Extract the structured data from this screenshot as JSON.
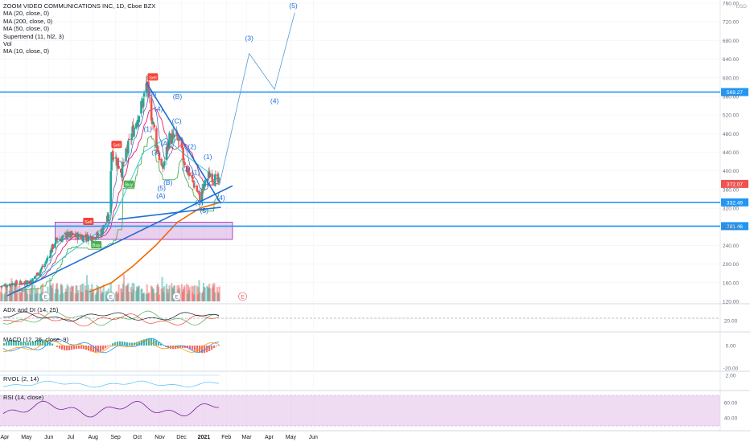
{
  "chart_data": {
    "type": "candlestick",
    "title": "ZOOM VIDEO COMMUNICATIONS INC, 1D, Cboe BZX",
    "currency": "USD",
    "legend": [
      "MA (20, close, 0)",
      "MA (200, close, 0)",
      "MA (50, close, 0)",
      "Supertrend (11, hl2, 3)",
      "Vol",
      "MA (10, close, 0)"
    ],
    "x_ticks": [
      "Apr",
      "May",
      "Jun",
      "Jul",
      "Aug",
      "Sep",
      "Oct",
      "Nov",
      "Dec",
      "2021",
      "Feb",
      "Mar",
      "Apr",
      "May",
      "Jun"
    ],
    "price_ticks": [
      "760.00",
      "720.00",
      "680.00",
      "640.00",
      "600.00",
      "560.00",
      "520.00",
      "480.00",
      "440.00",
      "400.00",
      "360.00",
      "320.00",
      "280.00",
      "240.00",
      "200.00",
      "160.00",
      "120.00"
    ],
    "ylim": [
      120,
      760
    ],
    "price_series": [
      {
        "date": "2020-04-01",
        "close": 152
      },
      {
        "date": "2020-04-15",
        "close": 158
      },
      {
        "date": "2020-05-01",
        "close": 160
      },
      {
        "date": "2020-05-15",
        "close": 166
      },
      {
        "date": "2020-06-01",
        "close": 200
      },
      {
        "date": "2020-06-15",
        "close": 248
      },
      {
        "date": "2020-07-01",
        "close": 262
      },
      {
        "date": "2020-07-15",
        "close": 260
      },
      {
        "date": "2020-08-01",
        "close": 258
      },
      {
        "date": "2020-08-15",
        "close": 262
      },
      {
        "date": "2020-08-28",
        "close": 300
      },
      {
        "date": "2020-09-01",
        "close": 445
      },
      {
        "date": "2020-09-15",
        "close": 400
      },
      {
        "date": "2020-10-01",
        "close": 490
      },
      {
        "date": "2020-10-15",
        "close": 550
      },
      {
        "date": "2020-10-19",
        "close": 585
      },
      {
        "date": "2020-11-01",
        "close": 470
      },
      {
        "date": "2020-11-10",
        "close": 400
      },
      {
        "date": "2020-11-20",
        "close": 470
      },
      {
        "date": "2020-12-01",
        "close": 470
      },
      {
        "date": "2020-12-15",
        "close": 400
      },
      {
        "date": "2021-01-01",
        "close": 345
      },
      {
        "date": "2021-01-15",
        "close": 395
      },
      {
        "date": "2021-01-28",
        "close": 372
      }
    ],
    "indicators": {
      "ma200": [
        {
          "date": "2020-08-01",
          "value": 140
        },
        {
          "date": "2020-09-01",
          "value": 160
        },
        {
          "date": "2020-10-01",
          "value": 196
        },
        {
          "date": "2020-11-01",
          "value": 240
        },
        {
          "date": "2020-12-01",
          "value": 290
        },
        {
          "date": "2021-01-01",
          "value": 320
        },
        {
          "date": "2021-01-28",
          "value": 332
        }
      ],
      "ma50": [
        {
          "date": "2020-05-01",
          "value": 140
        },
        {
          "date": "2020-07-01",
          "value": 220
        },
        {
          "date": "2020-09-01",
          "value": 290
        },
        {
          "date": "2020-10-15",
          "value": 440
        },
        {
          "date": "2020-11-15",
          "value": 470
        },
        {
          "date": "2020-12-15",
          "value": 430
        },
        {
          "date": "2021-01-28",
          "value": 380
        }
      ]
    },
    "horizontal_levels": [
      {
        "price": 569.27,
        "label": "569.27"
      },
      {
        "price": 332.49,
        "label": "332.49"
      },
      {
        "price": 281.46,
        "label": "281.46"
      }
    ],
    "last_price": "372.07",
    "zone": {
      "from_date": "2020-06-15",
      "to_date": "2021-02-15",
      "low": 253,
      "high": 290
    },
    "signals": [
      {
        "date": "2020-07-31",
        "label": "Sell",
        "price": 290
      },
      {
        "date": "2020-08-11",
        "label": "Buy",
        "price": 240
      },
      {
        "date": "2020-09-08",
        "label": "Sell",
        "price": 455
      },
      {
        "date": "2020-09-25",
        "label": "Buy",
        "price": 370
      },
      {
        "date": "2020-10-28",
        "label": "Sell",
        "price": 600
      }
    ],
    "wave_labels": [
      {
        "text": "(1)",
        "date": "2020-10-21",
        "price": 485
      },
      {
        "text": "(2)",
        "date": "2020-10-27",
        "price": 560
      },
      {
        "text": "(3)",
        "date": "2020-11-01",
        "price": 435
      },
      {
        "text": "(4)",
        "date": "2020-11-05",
        "price": 528
      },
      {
        "text": "(5)",
        "date": "2020-11-09",
        "price": 358
      },
      {
        "text": "(A)",
        "date": "2020-11-08",
        "price": 342
      },
      {
        "text": "(A)",
        "date": "2020-11-14",
        "price": 454
      },
      {
        "text": "(B)",
        "date": "2020-11-18",
        "price": 370
      },
      {
        "text": "(B)",
        "date": "2020-12-01",
        "price": 555
      },
      {
        "text": "(C)",
        "date": "2020-11-30",
        "price": 502
      },
      {
        "text": "(1)",
        "date": "2020-12-13",
        "price": 400
      },
      {
        "text": "(2)",
        "date": "2020-12-21",
        "price": 447
      },
      {
        "text": "(1)",
        "date": "2020-12-26",
        "price": 392
      },
      {
        "text": "(3)",
        "date": "2020-12-31",
        "price": 327
      },
      {
        "text": "(5)",
        "date": "2021-01-07",
        "price": 310
      },
      {
        "text": "(1)",
        "date": "2021-01-12",
        "price": 425
      },
      {
        "text": "(4)",
        "date": "2021-01-30",
        "price": 337
      },
      {
        "text": "(3)",
        "date": "2021-03-10",
        "price": 680
      },
      {
        "text": "(4)",
        "date": "2021-04-14",
        "price": 545
      },
      {
        "text": "(5)",
        "date": "2021-05-10",
        "price": 750
      }
    ],
    "projection": [
      {
        "date": "2021-01-28",
        "price": 370
      },
      {
        "date": "2021-03-10",
        "price": 652
      },
      {
        "date": "2021-04-14",
        "price": 575
      },
      {
        "date": "2021-05-12",
        "price": 740
      }
    ],
    "earnings_marks": [
      "E",
      "E",
      "E",
      "E"
    ],
    "panes": [
      {
        "name": "adx",
        "label": "ADX and DI (14, 25)",
        "ticks": [
          "20.00"
        ]
      },
      {
        "name": "macd",
        "label": "MACD (12, 26, close, 9)",
        "ticks": [
          "0.00",
          "-20.00"
        ]
      },
      {
        "name": "rvol",
        "label": "RVOL (2, 14)",
        "ticks": [
          "2.00"
        ]
      },
      {
        "name": "rsi",
        "label": "RSI (14, close)",
        "ticks": [
          "60.00",
          "40.00"
        ]
      }
    ]
  },
  "colors": {
    "up": "#26a69a",
    "down": "#ef5350",
    "level": "#2196f3",
    "trendline": "#1e6fd9",
    "ma200": "#ef6c00",
    "ma50": "#26c6da",
    "ma20": "#e91e63",
    "supertrend_up": "#4caf50",
    "supertrend_down": "#f44336",
    "zone": "#9c27b0",
    "rsi_band": "#e1bee7",
    "projection": "#5b9bd5"
  }
}
